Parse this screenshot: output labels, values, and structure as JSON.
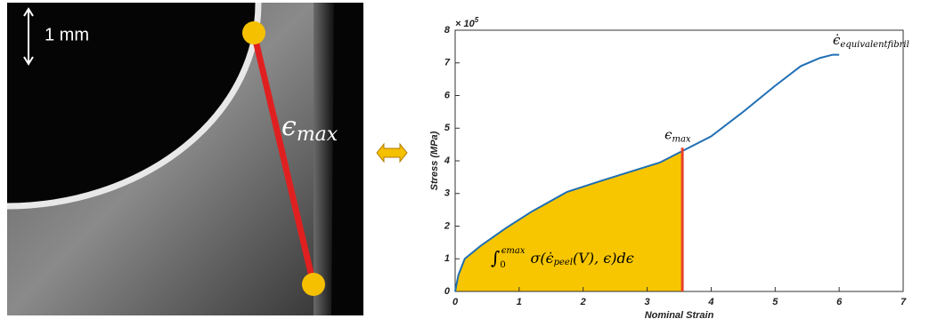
{
  "photo": {
    "scale_label": "1 mm",
    "strain_label": {
      "symbol": "ϵ",
      "subscript": "max"
    }
  },
  "chart_data": {
    "type": "line",
    "x_label": "Nominal Strain",
    "y_label": "Stress (MPa)",
    "y_multiplier": {
      "base": "× 10",
      "exponent": "5"
    },
    "x": [
      0,
      0.05,
      0.15,
      0.4,
      0.8,
      1.2,
      1.75,
      2.3,
      3.2,
      3.55,
      4,
      4.5,
      5,
      5.4,
      5.7,
      5.9,
      6.0
    ],
    "series": [
      {
        "color": "#1f6fb4",
        "values": [
          0,
          0.5,
          1.0,
          1.4,
          1.95,
          2.45,
          3.05,
          3.4,
          3.95,
          4.3,
          4.75,
          5.5,
          6.3,
          6.9,
          7.15,
          7.25,
          7.25
        ]
      }
    ],
    "xlim": [
      0,
      7
    ],
    "ylim": [
      0,
      8
    ],
    "xticks": [
      0,
      1,
      2,
      3,
      4,
      5,
      6,
      7
    ],
    "yticks": [
      0,
      1,
      2,
      3,
      4,
      5,
      6,
      7,
      8
    ],
    "fill_to_x": 3.55,
    "fill_color": "#f7c600",
    "cutoff_line": {
      "x": 3.55,
      "top": 4.4,
      "color": "#e8402a"
    },
    "annotations": {
      "epsilon_max": {
        "symbol": "ϵ",
        "subscript": "max"
      },
      "strain_rate": {
        "symbol": "ϵ̇",
        "subscript": "equivalentfibril"
      },
      "integral": {
        "sign": "∫",
        "lower": "0",
        "upper": "ϵmax",
        "body": "σ(ϵ̇",
        "body_sub": "peel",
        "tail": "(V), ϵ)dϵ"
      }
    }
  }
}
